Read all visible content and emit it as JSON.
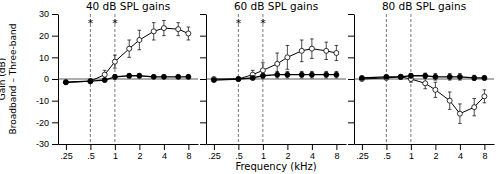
{
  "chart_data": [
    {
      "type": "line",
      "title": "40 dB SPL gains",
      "ylabel": "Gain (dB)\nBroadband – Three-band",
      "log": "x",
      "xlim": [
        0.2,
        10.5
      ],
      "xticks": [
        {
          "value": 0.25,
          "label": ".25"
        },
        {
          "value": 0.5,
          "label": ".5"
        },
        1,
        2,
        4,
        8
      ],
      "ylim": [
        -30,
        30
      ],
      "yticks": [
        -30,
        -20,
        -10,
        0,
        10,
        20,
        30
      ],
      "x": [
        0.25,
        0.5,
        0.75,
        1.0,
        1.5,
        2.0,
        3.0,
        4.0,
        6.0,
        8.0
      ],
      "series": [
        {
          "color": "black",
          "marker": "open-circle",
          "line_style": "solid",
          "values": [
            -1.5,
            -1.0,
            2.0,
            8.0,
            14.0,
            18.0,
            22.0,
            23.5,
            23.0,
            21.0
          ],
          "errors": [
            0.5,
            0.8,
            2.0,
            3.0,
            4.0,
            4.5,
            4.0,
            3.5,
            3.0,
            3.0
          ]
        },
        {
          "color": "black",
          "marker": "filled-circle",
          "line_style": "solid",
          "values": [
            -1.5,
            -1.0,
            -0.5,
            1.0,
            1.5,
            1.5,
            1.0,
            1.0,
            1.0,
            1.0
          ],
          "errors": [
            0.5,
            0.5,
            0.8,
            1.0,
            1.0,
            1.0,
            0.8,
            0.8,
            0.8,
            0.8
          ]
        }
      ],
      "hlines": [
        0
      ],
      "vlines": [
        0.5,
        1.0
      ],
      "annotations": [
        {
          "text": "*",
          "x": 0.5,
          "y": 27.5
        },
        {
          "text": "*",
          "x": 1.0,
          "y": 27.5
        }
      ]
    },
    {
      "type": "line",
      "title": "60 dB SPL gains",
      "xlabel": "Frequency (kHz)",
      "log": "x",
      "xlim": [
        0.2,
        10.5
      ],
      "tick_labels": "x",
      "xticks": [
        {
          "value": 0.25,
          "label": ".25"
        },
        {
          "value": 0.5,
          "label": ".5"
        },
        1,
        2,
        4,
        8
      ],
      "ylim": [
        -30,
        30
      ],
      "yticks": [
        -30,
        -20,
        -10,
        0,
        10,
        20,
        30
      ],
      "x": [
        0.25,
        0.5,
        0.75,
        1.0,
        1.5,
        2.0,
        3.0,
        4.0,
        6.0,
        8.0
      ],
      "series": [
        {
          "color": "black",
          "marker": "open-circle",
          "line_style": "solid",
          "values": [
            0.0,
            0.0,
            2.0,
            4.0,
            7.0,
            10.0,
            13.0,
            14.0,
            13.0,
            12.0
          ],
          "errors": [
            0.5,
            0.8,
            2.0,
            3.5,
            5.0,
            5.5,
            5.0,
            4.5,
            4.0,
            3.5
          ]
        },
        {
          "color": "black",
          "marker": "filled-circle",
          "line_style": "solid",
          "values": [
            -0.5,
            0.0,
            0.5,
            1.5,
            2.0,
            2.0,
            2.0,
            2.0,
            2.0,
            2.0
          ],
          "errors": [
            0.5,
            0.5,
            0.8,
            1.0,
            1.5,
            1.5,
            1.5,
            1.5,
            1.5,
            1.5
          ]
        }
      ],
      "hlines": [
        0
      ],
      "vlines": [
        0.5,
        1.0
      ],
      "annotations": [
        {
          "text": "*",
          "x": 0.5,
          "y": 27.5
        },
        {
          "text": "*",
          "x": 1.0,
          "y": 27.5
        }
      ]
    },
    {
      "type": "line",
      "title": "80 dB SPL gains",
      "log": "x",
      "xlim": [
        0.2,
        10.5
      ],
      "tick_labels": "x",
      "xticks": [
        {
          "value": 0.25,
          "label": ".25"
        },
        {
          "value": 0.5,
          "label": ".5"
        },
        1,
        2,
        4,
        8
      ],
      "ylim": [
        -30,
        30
      ],
      "yticks": [
        -30,
        -20,
        -10,
        0,
        10,
        20,
        30
      ],
      "x": [
        0.25,
        0.5,
        0.75,
        1.0,
        1.5,
        2.0,
        3.0,
        4.0,
        6.0,
        8.0
      ],
      "series": [
        {
          "color": "black",
          "marker": "open-circle",
          "line_style": "solid",
          "values": [
            0.0,
            0.5,
            1.0,
            0.0,
            -2.0,
            -5.0,
            -10.0,
            -16.0,
            -13.0,
            -8.0
          ],
          "errors": [
            0.5,
            0.8,
            1.0,
            1.5,
            2.5,
            3.5,
            4.0,
            4.5,
            4.0,
            3.0
          ]
        },
        {
          "color": "black",
          "marker": "filled-circle",
          "line_style": "solid",
          "values": [
            0.5,
            1.0,
            1.0,
            1.5,
            1.5,
            1.0,
            1.0,
            1.0,
            0.5,
            0.5
          ],
          "errors": [
            0.5,
            0.5,
            0.8,
            1.0,
            1.2,
            1.5,
            1.5,
            1.5,
            1.2,
            1.0
          ]
        }
      ],
      "hlines": [
        0
      ],
      "vlines": [
        0.5,
        1.0
      ]
    }
  ]
}
